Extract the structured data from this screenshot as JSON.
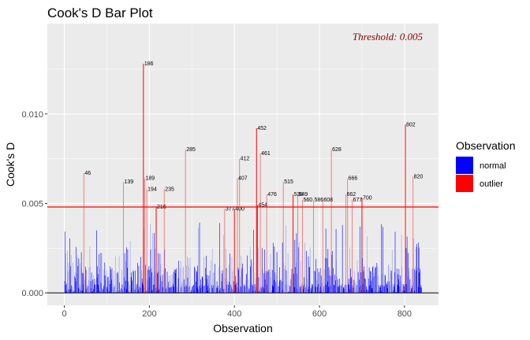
{
  "chart_data": {
    "type": "bar",
    "title": "Cook's D Bar Plot",
    "xlabel": "Observation",
    "ylabel": "Cook's D",
    "xlim": [
      -40,
      880
    ],
    "ylim": [
      -0.0007,
      0.01505
    ],
    "x_ticks": [
      0,
      200,
      400,
      600,
      800
    ],
    "y_ticks": [
      0.0,
      0.005,
      0.01
    ],
    "y_tick_labels": [
      "0.000",
      "0.005",
      "0.010"
    ],
    "threshold": 0.0048,
    "threshold_label": "Threshold: 0.005",
    "grid": true,
    "legend": {
      "title": "Observation",
      "position": "right",
      "entries": [
        {
          "name": "normal",
          "color": "#0000ff"
        },
        {
          "name": "outlier",
          "color": "#ff0000"
        }
      ]
    },
    "colors": {
      "normal": "#0000ff",
      "outlier": "#ff0000",
      "threshold_line": "#ff0000",
      "zero_line": "#000000"
    },
    "outliers": [
      {
        "x": 46,
        "y": 0.0067
      },
      {
        "x": 139,
        "y": 0.0062
      },
      {
        "x": 186,
        "y": 0.0128
      },
      {
        "x": 189,
        "y": 0.0064
      },
      {
        "x": 194,
        "y": 0.0058
      },
      {
        "x": 216,
        "y": 0.0048
      },
      {
        "x": 235,
        "y": 0.0058
      },
      {
        "x": 285,
        "y": 0.008
      },
      {
        "x": 377,
        "y": 0.0047
      },
      {
        "x": 400,
        "y": 0.0047
      },
      {
        "x": 407,
        "y": 0.0064
      },
      {
        "x": 412,
        "y": 0.0075
      },
      {
        "x": 452,
        "y": 0.0092
      },
      {
        "x": 454,
        "y": 0.0049
      },
      {
        "x": 461,
        "y": 0.0078
      },
      {
        "x": 476,
        "y": 0.0055
      },
      {
        "x": 515,
        "y": 0.0062
      },
      {
        "x": 538,
        "y": 0.0055
      },
      {
        "x": 549,
        "y": 0.0055
      },
      {
        "x": 560,
        "y": 0.0052
      },
      {
        "x": 586,
        "y": 0.0052
      },
      {
        "x": 608,
        "y": 0.0052
      },
      {
        "x": 628,
        "y": 0.008
      },
      {
        "x": 662,
        "y": 0.0055
      },
      {
        "x": 666,
        "y": 0.0064
      },
      {
        "x": 677,
        "y": 0.0052
      },
      {
        "x": 700,
        "y": 0.0053
      },
      {
        "x": 802,
        "y": 0.0094
      },
      {
        "x": 820,
        "y": 0.0065
      }
    ],
    "normal_n": 840,
    "normal_max": 0.004
  }
}
